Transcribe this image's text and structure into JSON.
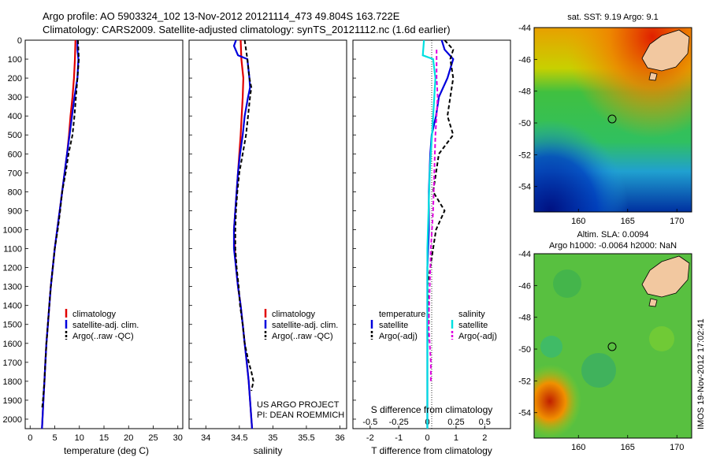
{
  "header": {
    "line1": "Argo profile: AO 5903324_102 13-Nov-2012 20121114_473 49.804S 163.722E",
    "line2": "Climatology: CARS2009. Satellite-adjusted climatology: synTS_20121112.nc (1.6d earlier)"
  },
  "colors": {
    "climatology": "#e00000",
    "satellite": "#0000dd",
    "argo": "#000000",
    "sal_satellite": "#00e0e0",
    "sal_argo": "#e000e0",
    "land": "#f2c8a0"
  },
  "chart_data": [
    {
      "type": "line",
      "ylim": [
        0,
        2050
      ],
      "yticks": [
        "0",
        "100",
        "200",
        "300",
        "400",
        "500",
        "600",
        "700",
        "800",
        "900",
        "1000",
        "1100",
        "1200",
        "1300",
        "1400",
        "1500",
        "1600",
        "1700",
        "1800",
        "1900",
        "2000"
      ],
      "xlim": [
        -1,
        31
      ],
      "xticks": [
        "0",
        "5",
        "10",
        "15",
        "20",
        "25",
        "30"
      ],
      "xlabel": "temperature (deg C)",
      "legend": [
        "climatology",
        "satellite-adj. clim.",
        "Argo(..raw -QC)"
      ],
      "series": [
        {
          "name": "climatology",
          "style": "climatology",
          "pts": [
            [
              9.2,
              0
            ],
            [
              9.1,
              100
            ],
            [
              8.9,
              200
            ],
            [
              8.6,
              300
            ],
            [
              8.2,
              400
            ],
            [
              7.9,
              500
            ],
            [
              7.5,
              600
            ],
            [
              7.0,
              700
            ],
            [
              6.5,
              800
            ],
            [
              6.0,
              900
            ],
            [
              5.5,
              1000
            ],
            [
              5.0,
              1100
            ],
            [
              4.6,
              1200
            ],
            [
              4.2,
              1300
            ],
            [
              3.9,
              1400
            ],
            [
              3.6,
              1500
            ],
            [
              3.3,
              1600
            ],
            [
              3.1,
              1700
            ],
            [
              2.9,
              1800
            ],
            [
              2.7,
              1900
            ],
            [
              2.5,
              2000
            ],
            [
              2.4,
              2050
            ]
          ]
        },
        {
          "name": "satellite-adj. clim.",
          "style": "satellite",
          "pts": [
            [
              9.6,
              0
            ],
            [
              9.6,
              50
            ],
            [
              9.8,
              100
            ],
            [
              9.6,
              200
            ],
            [
              9.0,
              300
            ],
            [
              8.5,
              400
            ],
            [
              8.0,
              500
            ],
            [
              7.5,
              600
            ],
            [
              7.0,
              700
            ],
            [
              6.5,
              800
            ],
            [
              6.0,
              900
            ],
            [
              5.5,
              1000
            ],
            [
              5.0,
              1100
            ],
            [
              4.6,
              1200
            ],
            [
              4.2,
              1300
            ],
            [
              3.9,
              1400
            ],
            [
              3.6,
              1500
            ],
            [
              3.3,
              1600
            ],
            [
              3.1,
              1700
            ],
            [
              2.9,
              1800
            ],
            [
              2.7,
              1900
            ],
            [
              2.5,
              2000
            ],
            [
              2.4,
              2050
            ]
          ]
        },
        {
          "name": "Argo(..raw -QC)",
          "style": "argo",
          "pts": [
            [
              9.7,
              0
            ],
            [
              9.8,
              50
            ],
            [
              9.9,
              100
            ],
            [
              9.6,
              200
            ],
            [
              9.3,
              300
            ],
            [
              9.0,
              400
            ],
            [
              8.6,
              500
            ],
            [
              7.8,
              600
            ],
            [
              7.2,
              700
            ],
            [
              6.5,
              800
            ],
            [
              6.1,
              900
            ],
            [
              5.6,
              1000
            ],
            [
              5.0,
              1100
            ],
            [
              4.6,
              1200
            ],
            [
              4.2,
              1300
            ],
            [
              3.9,
              1400
            ],
            [
              3.6,
              1500
            ],
            [
              3.3,
              1600
            ],
            [
              3.1,
              1700
            ],
            [
              2.9,
              1800
            ],
            [
              2.6,
              1900
            ],
            [
              2.4,
              1950
            ]
          ]
        }
      ]
    },
    {
      "type": "line",
      "ylim": [
        0,
        2050
      ],
      "xlim": [
        33.75,
        36.1
      ],
      "xticks": [
        "34",
        "34.5",
        "35",
        "35.5",
        "36"
      ],
      "xlabel": "salinity",
      "legend": [
        "climatology",
        "satellite-adj. clim.",
        "Argo(..raw -QC)"
      ],
      "annotations": [
        "US ARGO PROJECT",
        "PI: DEAN ROEMMICH"
      ],
      "series": [
        {
          "name": "climatology",
          "style": "climatology",
          "pts": [
            [
              34.52,
              0
            ],
            [
              34.53,
              100
            ],
            [
              34.56,
              200
            ],
            [
              34.55,
              300
            ],
            [
              34.52,
              500
            ],
            [
              34.48,
              700
            ],
            [
              34.44,
              900
            ],
            [
              34.42,
              1000
            ],
            [
              34.43,
              1100
            ],
            [
              34.45,
              1200
            ],
            [
              34.48,
              1300
            ],
            [
              34.52,
              1400
            ],
            [
              34.55,
              1500
            ],
            [
              34.58,
              1600
            ],
            [
              34.61,
              1700
            ],
            [
              34.64,
              1800
            ],
            [
              34.66,
              1900
            ],
            [
              34.68,
              2000
            ],
            [
              34.69,
              2050
            ]
          ]
        },
        {
          "name": "satellite-adj. clim.",
          "style": "satellite",
          "pts": [
            [
              34.45,
              0
            ],
            [
              34.42,
              30
            ],
            [
              34.48,
              80
            ],
            [
              34.62,
              100
            ],
            [
              34.65,
              200
            ],
            [
              34.66,
              250
            ],
            [
              34.63,
              300
            ],
            [
              34.58,
              400
            ],
            [
              34.55,
              500
            ],
            [
              34.51,
              600
            ],
            [
              34.48,
              700
            ],
            [
              34.46,
              800
            ],
            [
              34.44,
              900
            ],
            [
              34.42,
              1000
            ],
            [
              34.42,
              1100
            ],
            [
              34.45,
              1200
            ],
            [
              34.48,
              1300
            ],
            [
              34.52,
              1400
            ],
            [
              34.55,
              1500
            ],
            [
              34.58,
              1600
            ],
            [
              34.61,
              1700
            ],
            [
              34.64,
              1800
            ],
            [
              34.66,
              1900
            ],
            [
              34.68,
              2000
            ],
            [
              34.69,
              2050
            ]
          ]
        },
        {
          "name": "Argo(..raw -QC)",
          "style": "argo",
          "pts": [
            [
              34.58,
              0
            ],
            [
              34.6,
              50
            ],
            [
              34.62,
              100
            ],
            [
              34.65,
              200
            ],
            [
              34.68,
              250
            ],
            [
              34.66,
              300
            ],
            [
              34.63,
              400
            ],
            [
              34.6,
              500
            ],
            [
              34.55,
              600
            ],
            [
              34.5,
              700
            ],
            [
              34.47,
              800
            ],
            [
              34.45,
              900
            ],
            [
              34.44,
              1000
            ],
            [
              34.44,
              1100
            ],
            [
              34.46,
              1200
            ],
            [
              34.49,
              1300
            ],
            [
              34.51,
              1400
            ],
            [
              34.55,
              1500
            ],
            [
              34.58,
              1600
            ],
            [
              34.64,
              1700
            ],
            [
              34.68,
              1750
            ],
            [
              34.71,
              1800
            ],
            [
              34.68,
              1850
            ]
          ]
        }
      ]
    },
    {
      "type": "line",
      "ylim": [
        0,
        2050
      ],
      "xlim": [
        -2.6,
        2.9
      ],
      "xticks": [
        "-2",
        "-1",
        "0",
        "1",
        "2"
      ],
      "xticks_top_values": [
        -0.5,
        -0.25,
        0,
        0.25,
        0.5
      ],
      "xticks_top": [
        "-0.5",
        "-0.25",
        "0",
        "0.25",
        "0.5"
      ],
      "xlabel": "T difference from climatology",
      "xlabel_top": "S difference from climatology",
      "legend_left_title": "temperature",
      "legend_right_title": "salinity",
      "legend": [
        "satellite",
        "Argo(-adj)",
        "satellite",
        "Argo(-adj)"
      ],
      "series": [
        {
          "name": "satellite",
          "style": "satellite",
          "units": "T",
          "pts": [
            [
              0.5,
              0
            ],
            [
              0.6,
              50
            ],
            [
              0.9,
              100
            ],
            [
              0.7,
              200
            ],
            [
              0.4,
              300
            ],
            [
              0.3,
              400
            ],
            [
              0.15,
              500
            ],
            [
              0.1,
              600
            ],
            [
              0.05,
              800
            ],
            [
              0.05,
              1000
            ],
            [
              0.0,
              1200
            ],
            [
              0.0,
              1500
            ],
            [
              0.0,
              2050
            ]
          ]
        },
        {
          "name": "Argo(-adj)",
          "style": "argo",
          "units": "T",
          "pts": [
            [
              0.6,
              0
            ],
            [
              0.9,
              50
            ],
            [
              0.8,
              100
            ],
            [
              0.9,
              200
            ],
            [
              0.8,
              300
            ],
            [
              0.7,
              400
            ],
            [
              0.9,
              500
            ],
            [
              0.4,
              600
            ],
            [
              0.3,
              700
            ],
            [
              0.2,
              800
            ],
            [
              0.6,
              900
            ],
            [
              0.3,
              1000
            ],
            [
              0.2,
              1100
            ],
            [
              0.1,
              1200
            ],
            [
              0.0,
              1300
            ],
            [
              0.05,
              1400
            ],
            [
              0.05,
              1500
            ],
            [
              0.0,
              1600
            ],
            [
              0.0,
              1700
            ],
            [
              0.0,
              1800
            ],
            [
              0.0,
              1900
            ],
            [
              0.0,
              1950
            ]
          ]
        },
        {
          "name": "satellite",
          "style": "sal_satellite",
          "units": "S",
          "pts": [
            [
              -0.03,
              0
            ],
            [
              -0.04,
              80
            ],
            [
              0.05,
              100
            ],
            [
              0.07,
              200
            ],
            [
              0.06,
              300
            ],
            [
              0.04,
              500
            ],
            [
              0.02,
              700
            ],
            [
              0.01,
              900
            ],
            [
              0.0,
              1100
            ],
            [
              0.0,
              1500
            ],
            [
              0.0,
              2050
            ]
          ]
        },
        {
          "name": "Argo(-adj)",
          "style": "sal_argo",
          "units": "S",
          "pts": [
            [
              0.08,
              50
            ],
            [
              0.08,
              200
            ],
            [
              0.09,
              300
            ],
            [
              0.07,
              500
            ],
            [
              0.06,
              700
            ],
            [
              0.05,
              900
            ],
            [
              0.03,
              1100
            ],
            [
              0.02,
              1300
            ],
            [
              0.01,
              1500
            ],
            [
              0.03,
              1700
            ],
            [
              0.03,
              1800
            ]
          ]
        }
      ]
    },
    {
      "type": "heatmap",
      "title": "sat. SST: 9.19  Argo: 9.1",
      "xlim": [
        155.5,
        171.5
      ],
      "ylim": [
        -55.6,
        -44
      ],
      "xticks": [
        "160",
        "165",
        "170"
      ],
      "yticks": [
        "-44",
        "-46",
        "-48",
        "-50",
        "-52",
        "-54"
      ],
      "float_position": [
        163.722,
        -49.804
      ]
    },
    {
      "type": "heatmap",
      "title": "Altim. SLA: 0.0094",
      "subtitle": "Argo h1000: -0.0064  h2000: NaN",
      "xlim": [
        155.5,
        171.5
      ],
      "ylim": [
        -55.6,
        -44
      ],
      "xticks": [
        "160",
        "165",
        "170"
      ],
      "yticks": [
        "-44",
        "-46",
        "-48",
        "-50",
        "-52",
        "-54"
      ],
      "float_position": [
        163.722,
        -49.804
      ]
    }
  ],
  "side_label": "IMOS 19-Nov-2012 17:02:41"
}
